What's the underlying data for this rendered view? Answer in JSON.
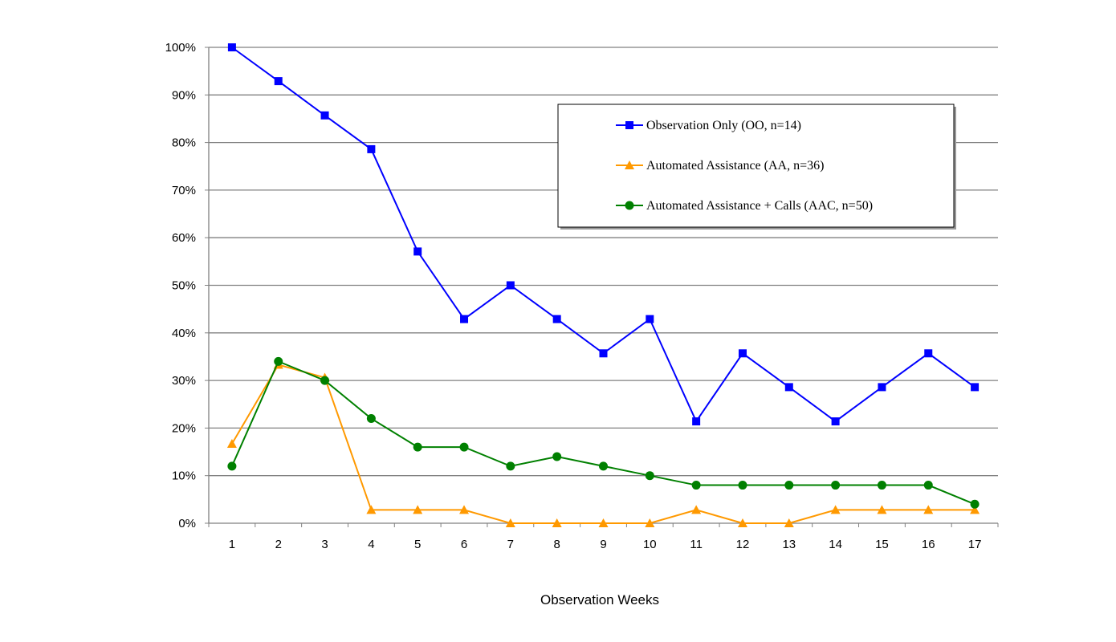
{
  "chart_data": {
    "type": "line",
    "title": "",
    "xlabel": "Observation Weeks",
    "ylabel": "",
    "ylim": [
      0,
      100
    ],
    "y_ticks": [
      "0%",
      "10%",
      "20%",
      "30%",
      "40%",
      "50%",
      "60%",
      "70%",
      "80%",
      "90%",
      "100%"
    ],
    "categories": [
      "1",
      "2",
      "3",
      "4",
      "5",
      "6",
      "7",
      "8",
      "9",
      "10",
      "11",
      "12",
      "13",
      "14",
      "15",
      "16",
      "17"
    ],
    "grid": true,
    "legend_position": "top-right",
    "series": [
      {
        "name": "Observation Only (OO, n=14)",
        "color": "#0000ff",
        "marker": "square",
        "values": [
          100,
          92.9,
          85.7,
          78.6,
          57.1,
          42.9,
          50,
          42.9,
          35.7,
          42.9,
          21.4,
          35.7,
          28.6,
          21.4,
          28.6,
          35.7,
          28.6
        ]
      },
      {
        "name": "Automated Assistance (AA, n=36)",
        "color": "#ff9900",
        "marker": "triangle",
        "values": [
          16.7,
          33.3,
          30.6,
          2.8,
          2.8,
          2.8,
          0,
          0,
          0,
          0,
          2.8,
          0,
          0,
          2.8,
          2.8,
          2.8,
          2.8
        ]
      },
      {
        "name": "Automated Assistance + Calls (AAC, n=50)",
        "color": "#008000",
        "marker": "circle",
        "values": [
          12,
          34,
          30,
          22,
          16,
          16,
          12,
          14,
          12,
          10,
          8,
          8,
          8,
          8,
          8,
          8,
          4
        ]
      }
    ]
  }
}
